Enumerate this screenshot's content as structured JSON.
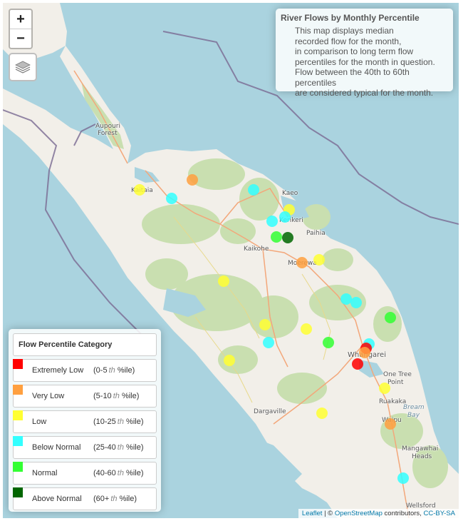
{
  "info": {
    "title": "River Flows by Monthly Percentile",
    "lines": [
      "This map displays median",
      "recorded flow for the month,",
      "in comparison to long term flow",
      "percentiles for the month in question.",
      "Flow between the 40th to 60th percentiles",
      "are considered typical for the month."
    ]
  },
  "controls": {
    "zoom_in": "+",
    "zoom_out": "−"
  },
  "legend": {
    "title": "Flow Percentile Category",
    "items": [
      {
        "label": "Extremely Low",
        "range_start": "(0-5",
        "range_th": "th",
        "range_end": "%ile)",
        "color": "#ff0000"
      },
      {
        "label": "Very Low",
        "range_start": "(5-10",
        "range_th": "th",
        "range_end": "%ile)",
        "color": "#ffa040"
      },
      {
        "label": "Low",
        "range_start": "(10-25",
        "range_th": "th",
        "range_end": "%ile)",
        "color": "#ffff33"
      },
      {
        "label": "Below Normal",
        "range_start": "(25-40",
        "range_th": "th",
        "range_end": "%ile)",
        "color": "#33ffff"
      },
      {
        "label": "Normal",
        "range_start": "(40-60",
        "range_th": "th",
        "range_end": "%ile)",
        "color": "#33ff33"
      },
      {
        "label": "Above Normal",
        "range_start": "(60+",
        "range_th": "th",
        "range_end": "%ile)",
        "color": "#006600"
      }
    ]
  },
  "places": [
    "Aupouri",
    "Forest",
    "Kaitaia",
    "Kaeo",
    "Kerikeri",
    "Paihia",
    "Kaikohe",
    "Moerewa",
    "Whangarei",
    "One Tree",
    "Point",
    "Ruakaka",
    "Bream",
    "Bay",
    "Dargaville",
    "Waipu",
    "Mangawhai",
    "Heads",
    "Wellsford"
  ],
  "attribution": {
    "leaflet": "Leaflet",
    "sep": " | © ",
    "osm": "OpenStreetMap",
    "contrib": " contributors, ",
    "license": "CC-BY-SA"
  },
  "stations": [
    {
      "cat": 1
    },
    {
      "cat": 2
    },
    {
      "cat": 3
    },
    {
      "cat": 3
    },
    {
      "cat": 2
    },
    {
      "cat": 3
    },
    {
      "cat": 3
    },
    {
      "cat": 4
    },
    {
      "cat": 5
    },
    {
      "cat": 1
    },
    {
      "cat": 2
    },
    {
      "cat": 2
    },
    {
      "cat": 3
    },
    {
      "cat": 3
    },
    {
      "cat": 4
    },
    {
      "cat": 2
    },
    {
      "cat": 2
    },
    {
      "cat": 3
    },
    {
      "cat": 4
    },
    {
      "cat": 3
    },
    {
      "cat": 0
    },
    {
      "cat": 1
    },
    {
      "cat": 2
    },
    {
      "cat": 0
    },
    {
      "cat": 2
    },
    {
      "cat": 2
    },
    {
      "cat": 1
    },
    {
      "cat": 3
    },
    {
      "cat": 3
    },
    {
      "cat": 1
    },
    {
      "cat": 3
    },
    {
      "cat": 1
    },
    {
      "cat": 2
    }
  ]
}
